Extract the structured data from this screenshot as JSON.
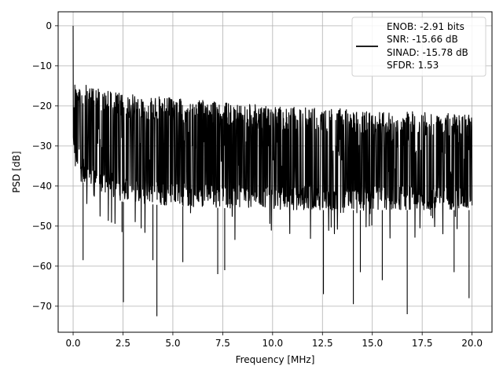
{
  "chart_data": {
    "type": "line",
    "title": "",
    "xlabel": "Frequency [MHz]",
    "ylabel": "PSD [dB]",
    "xlim": [
      -0.75,
      21.0
    ],
    "ylim": [
      -76.5,
      3.5
    ],
    "xticks": [
      0.0,
      2.5,
      5.0,
      7.5,
      10.0,
      12.5,
      15.0,
      17.5,
      20.0
    ],
    "xtick_labels": [
      "0.0",
      "2.5",
      "5.0",
      "7.5",
      "10.0",
      "12.5",
      "15.0",
      "17.5",
      "20.0"
    ],
    "yticks": [
      0,
      -10,
      -20,
      -30,
      -40,
      -50,
      -60,
      -70
    ],
    "ytick_labels": [
      "0",
      "−10",
      "−20",
      "−30",
      "−40",
      "−50",
      "−60",
      "−70"
    ],
    "grid": true,
    "legend_position": "top-right",
    "series": [
      {
        "color": "#000000",
        "x_range": [
          0.0,
          20.0
        ],
        "dc_peak_db": 0.0,
        "approx_envelope": [
          {
            "x": 0.0,
            "upper": -14,
            "mean": -30,
            "lower": -38
          },
          {
            "x": 2.5,
            "upper": -17,
            "mean": -31,
            "lower": -44
          },
          {
            "x": 5.0,
            "upper": -18,
            "mean": -31,
            "lower": -45
          },
          {
            "x": 10.0,
            "upper": -20,
            "mean": -32,
            "lower": -46
          },
          {
            "x": 15.0,
            "upper": -21,
            "mean": -32,
            "lower": -46
          },
          {
            "x": 20.0,
            "upper": -22,
            "mean": -32,
            "lower": -46
          }
        ],
        "notable_dips": [
          {
            "x": 0.5,
            "y": -58.5
          },
          {
            "x": 2.45,
            "y": -51.5
          },
          {
            "x": 2.52,
            "y": -69.0
          },
          {
            "x": 4.0,
            "y": -58.5
          },
          {
            "x": 4.2,
            "y": -72.5
          },
          {
            "x": 5.5,
            "y": -59.0
          },
          {
            "x": 7.25,
            "y": -62.0
          },
          {
            "x": 7.6,
            "y": -61.0
          },
          {
            "x": 12.55,
            "y": -67.0
          },
          {
            "x": 14.05,
            "y": -69.5
          },
          {
            "x": 14.4,
            "y": -61.5
          },
          {
            "x": 15.5,
            "y": -63.5
          },
          {
            "x": 16.75,
            "y": -72.0
          },
          {
            "x": 19.1,
            "y": -61.5
          },
          {
            "x": 19.85,
            "y": -68.0
          }
        ]
      }
    ],
    "legend": {
      "lines": [
        "ENOB: -2.91 bits",
        "SNR: -15.66 dB",
        "SINAD: -15.78 dB",
        "SFDR: 1.53"
      ]
    }
  }
}
